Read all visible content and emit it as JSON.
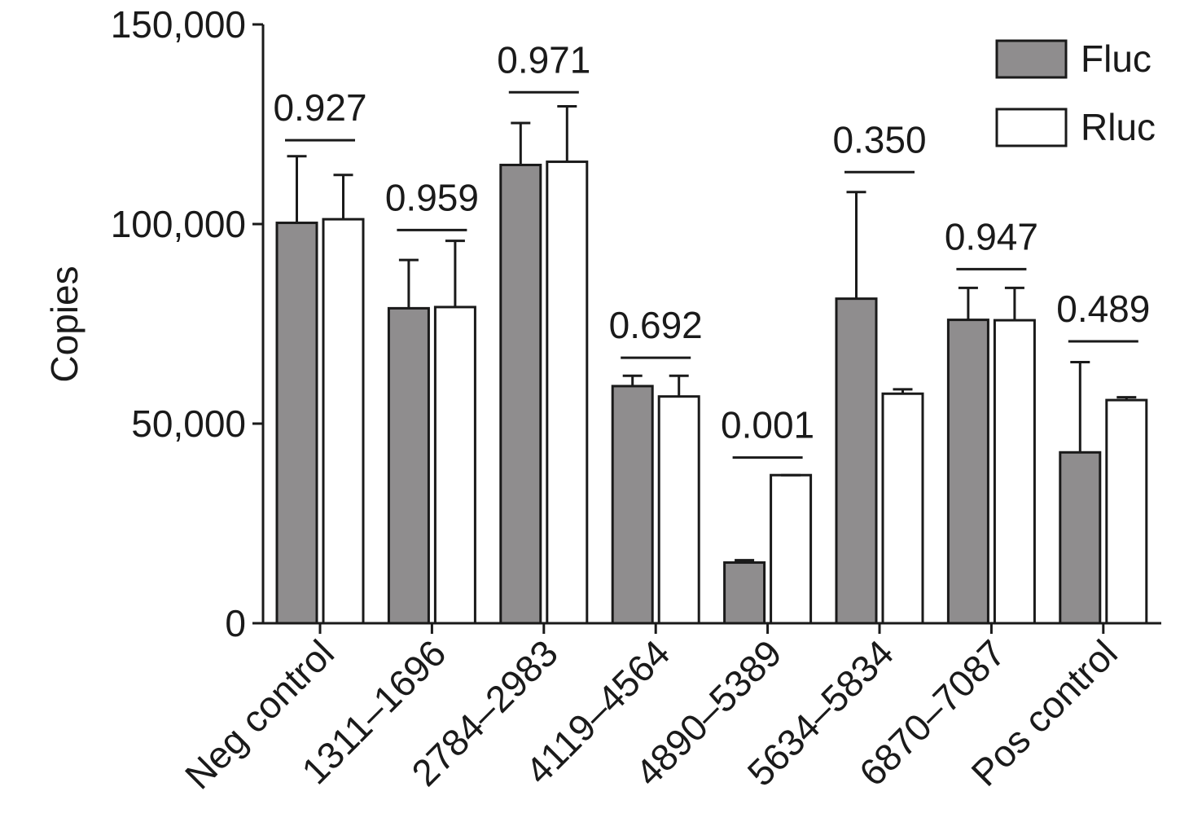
{
  "chart_data": {
    "type": "bar",
    "ylabel": "Copies",
    "xlabel": "",
    "ylim": [
      0,
      150000
    ],
    "yticks": [
      0,
      50000,
      100000,
      150000
    ],
    "ytick_labels": [
      "0",
      "50,000",
      "100,000",
      "150,000"
    ],
    "categories": [
      "Neg control",
      "1311–1696",
      "2784–2983",
      "4119–4564",
      "4890–5389",
      "5634–5834",
      "6870–7087",
      "Pos control"
    ],
    "series": [
      {
        "name": "Fluc",
        "color": "#8f8d8e",
        "values": [
          100300,
          78900,
          114800,
          59400,
          15200,
          81300,
          76000,
          42800
        ],
        "error_upper": [
          117000,
          91000,
          125300,
          62000,
          15800,
          108000,
          84000,
          65400
        ]
      },
      {
        "name": "Rluc",
        "color": "#ffffff",
        "values": [
          101200,
          79200,
          115600,
          56800,
          37100,
          57500,
          75900,
          55900
        ],
        "error_upper": [
          112300,
          95800,
          129500,
          62000,
          37100,
          58600,
          84000,
          56600
        ]
      }
    ],
    "p_values": [
      "0.927",
      "0.959",
      "0.971",
      "0.692",
      "0.001",
      "0.350",
      "0.947",
      "0.489"
    ],
    "bracket_levels": [
      121000,
      98500,
      133000,
      66500,
      41500,
      113000,
      88700,
      70600
    ],
    "legend": {
      "position": "top-right",
      "entries": [
        "Fluc",
        "Rluc"
      ]
    },
    "grid": false
  }
}
